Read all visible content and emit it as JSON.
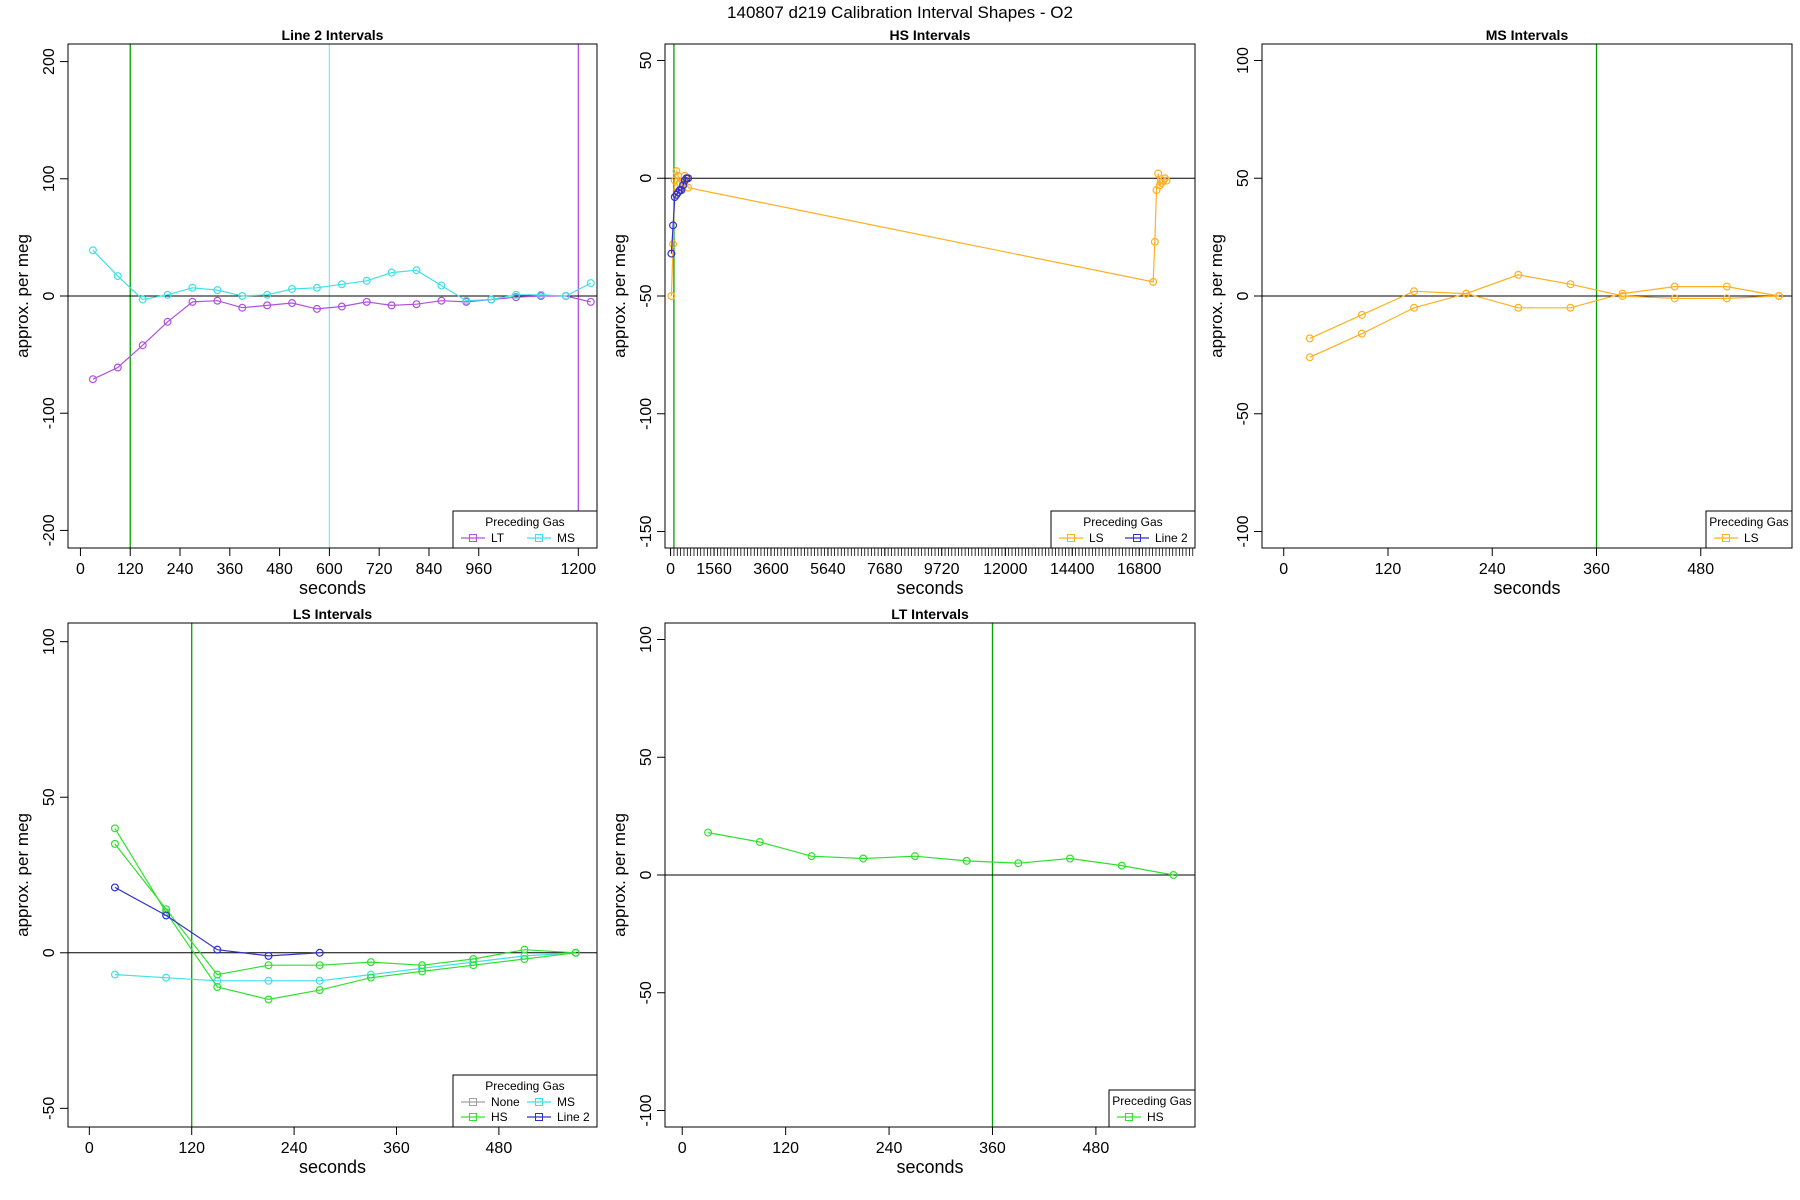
{
  "page_title": "140807   d219   Calibration Interval Shapes - O2",
  "chart_data": [
    {
      "type": "line",
      "title": "Line 2 Intervals",
      "xlabel": "seconds",
      "ylabel": "approx. per meg",
      "xlim": [
        -30,
        1245
      ],
      "ylim": [
        -215,
        215
      ],
      "x_ticks": [
        0,
        120,
        240,
        360,
        480,
        600,
        720,
        840,
        960,
        1200
      ],
      "y_ticks": [
        -200,
        -100,
        0,
        100,
        200
      ],
      "hline": 0,
      "vlines": [
        {
          "x": 120,
          "color": "#00a000"
        },
        {
          "x": 600,
          "color": "#7ff0f0"
        },
        {
          "x": 1200,
          "color": "#b050e0"
        }
      ],
      "legend": {
        "title": "Preceding Gas",
        "position": "bottom-right",
        "columns": 2,
        "entries": [
          {
            "name": "LT",
            "color": "#b050e0"
          },
          {
            "name": "MS",
            "color": "#3fe0e8"
          }
        ]
      },
      "series": [
        {
          "name": "LT",
          "color": "#b050e0",
          "x": [
            30,
            90,
            150,
            210,
            270,
            330,
            390,
            450,
            510,
            570,
            630,
            690,
            750,
            810,
            870,
            930,
            990,
            1050,
            1110,
            1170,
            1230
          ],
          "y": [
            -71,
            -61,
            -42,
            -22,
            -5,
            -4,
            -10,
            -8,
            -6,
            -11,
            -9,
            -5,
            -8,
            -7,
            -4,
            -5,
            -3,
            -1,
            0,
            0,
            -5
          ]
        },
        {
          "name": "MS",
          "color": "#3fe0e8",
          "x": [
            30,
            90,
            150,
            210,
            270,
            330,
            390,
            450,
            510,
            570,
            630,
            690,
            750,
            810,
            870,
            930,
            990,
            1050,
            1110,
            1170,
            1230
          ],
          "y": [
            39,
            17,
            -3,
            1,
            7,
            5,
            0,
            1,
            6,
            7,
            10,
            13,
            20,
            22,
            9,
            -4,
            -3,
            1,
            1,
            0,
            11
          ]
        }
      ]
    },
    {
      "type": "line",
      "title": "HS Intervals",
      "xlabel": "seconds",
      "ylabel": "approx. per meg",
      "xlim": [
        -200,
        18800
      ],
      "ylim": [
        -157,
        57
      ],
      "x_ticks": [
        0,
        1560,
        3600,
        5640,
        7680,
        9720,
        12000,
        14400,
        16800
      ],
      "minor_tick_step": 120,
      "y_ticks": [
        -150,
        -100,
        -50,
        0,
        50
      ],
      "hline": 0,
      "vlines": [
        {
          "x": 120,
          "color": "#00a000"
        }
      ],
      "legend": {
        "title": "Preceding Gas",
        "position": "bottom-right",
        "columns": 2,
        "entries": [
          {
            "name": "LS",
            "color": "#ffb020"
          },
          {
            "name": "Line 2",
            "color": "#3030d0"
          }
        ]
      },
      "series": [
        {
          "name": "LS",
          "color": "#ffb020",
          "x": [
            30,
            90,
            150,
            210,
            270,
            330,
            390,
            450,
            510,
            570,
            630,
            17300,
            17360,
            17420,
            17480,
            17540,
            17600,
            17660,
            17720,
            17780
          ],
          "y": [
            -50,
            -28,
            -1,
            3,
            1,
            -2,
            -4,
            -2,
            1,
            0,
            -4,
            -44,
            -27,
            -5,
            2,
            -3,
            -2,
            -1,
            0,
            -1
          ]
        },
        {
          "name": "Line 2",
          "color": "#3030d0",
          "x": [
            30,
            90,
            150,
            210,
            270,
            330,
            390,
            450,
            510,
            570,
            630
          ],
          "y": [
            -32,
            -20,
            -8,
            -7,
            -6,
            -5,
            -5,
            -3,
            -1,
            0,
            0
          ]
        }
      ]
    },
    {
      "type": "line",
      "title": "MS Intervals",
      "xlabel": "seconds",
      "ylabel": "approx. per meg",
      "xlim": [
        -25,
        585
      ],
      "ylim": [
        -107,
        107
      ],
      "x_ticks": [
        0,
        120,
        240,
        360,
        480
      ],
      "y_ticks": [
        -100,
        -50,
        0,
        50,
        100
      ],
      "hline": 0,
      "vlines": [
        {
          "x": 360,
          "color": "#00a000"
        }
      ],
      "legend": {
        "title": "Preceding Gas",
        "position": "bottom-right",
        "columns": 1,
        "entries": [
          {
            "name": "LS",
            "color": "#ffb020"
          }
        ]
      },
      "series": [
        {
          "name": "LS",
          "color": "#ffb020",
          "x": [
            30,
            90,
            150,
            210,
            270,
            330,
            390,
            450,
            510,
            570
          ],
          "y": [
            -26,
            -16,
            -5,
            1,
            -5,
            -5,
            1,
            4,
            4,
            0
          ]
        },
        {
          "name": "LS",
          "color": "#ffb020",
          "x": [
            30,
            90,
            150,
            210,
            270,
            330,
            390,
            450,
            510,
            570
          ],
          "y": [
            -18,
            -8,
            2,
            1,
            9,
            5,
            0,
            -1,
            -1,
            0
          ]
        }
      ]
    },
    {
      "type": "line",
      "title": "LS Intervals",
      "xlabel": "seconds",
      "ylabel": "approx. per meg",
      "xlim": [
        -25,
        595
      ],
      "ylim": [
        -56,
        106
      ],
      "x_ticks": [
        0,
        120,
        240,
        360,
        480
      ],
      "y_ticks": [
        -50,
        0,
        50,
        100
      ],
      "hline": 0,
      "vlines": [
        {
          "x": 120,
          "color": "#00a000"
        }
      ],
      "legend": {
        "title": "Preceding Gas",
        "position": "bottom-right",
        "columns": 2,
        "entries": [
          {
            "name": "None",
            "color": "#a0a0a0"
          },
          {
            "name": "MS",
            "color": "#3fe0e8"
          },
          {
            "name": "HS",
            "color": "#30e030"
          },
          {
            "name": "Line 2",
            "color": "#3030d0"
          }
        ]
      },
      "series": [
        {
          "name": "MS",
          "color": "#3fe0e8",
          "x": [
            30,
            90,
            150,
            210,
            270,
            330,
            390,
            450,
            510,
            570
          ],
          "y": [
            -7,
            -8,
            -9,
            -9,
            -9,
            -7,
            -5,
            -3,
            -1,
            0
          ]
        },
        {
          "name": "HS",
          "color": "#30e030",
          "x": [
            30,
            90,
            150,
            210,
            270,
            330,
            390,
            450,
            510,
            570
          ],
          "y": [
            40,
            13,
            -11,
            -15,
            -12,
            -8,
            -6,
            -4,
            -2,
            0
          ]
        },
        {
          "name": "HS",
          "color": "#30e030",
          "x": [
            30,
            90,
            150,
            210,
            270,
            330,
            390,
            450,
            510,
            570
          ],
          "y": [
            35,
            14,
            -7,
            -4,
            -4,
            -3,
            -4,
            -2,
            1,
            0
          ]
        },
        {
          "name": "Line 2",
          "color": "#3030d0",
          "x": [
            30,
            90,
            150,
            210,
            270
          ],
          "y": [
            21,
            12,
            1,
            -1,
            0
          ]
        }
      ]
    },
    {
      "type": "line",
      "title": "LT Intervals",
      "xlabel": "seconds",
      "ylabel": "approx. per meg",
      "xlim": [
        -20,
        595
      ],
      "ylim": [
        -107,
        107
      ],
      "x_ticks": [
        0,
        120,
        240,
        360,
        480
      ],
      "y_ticks": [
        -100,
        -50,
        0,
        50,
        100
      ],
      "hline": 0,
      "vlines": [
        {
          "x": 360,
          "color": "#00a000"
        }
      ],
      "legend": {
        "title": "Preceding Gas",
        "position": "bottom-right",
        "columns": 1,
        "entries": [
          {
            "name": "HS",
            "color": "#30e030"
          }
        ]
      },
      "series": [
        {
          "name": "HS",
          "color": "#30e030",
          "x": [
            30,
            90,
            150,
            210,
            270,
            330,
            390,
            450,
            510,
            570
          ],
          "y": [
            18,
            14,
            8,
            7,
            8,
            6,
            5,
            7,
            4,
            0
          ]
        }
      ]
    }
  ]
}
